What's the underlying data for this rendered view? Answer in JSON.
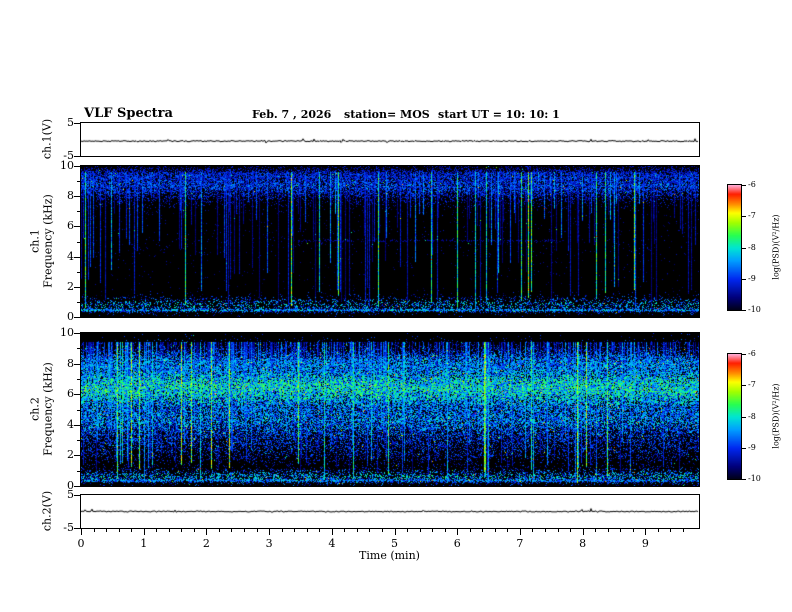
{
  "header": {
    "title": "VLF Spectra",
    "date": "Feb. 7 , 2026",
    "station": "station= MOS",
    "start_ut": "start UT =  10: 10: 1"
  },
  "axes": {
    "time": {
      "label": "Time (min)",
      "lim": [
        0,
        9.84
      ],
      "ticks": [
        0,
        1,
        2,
        3,
        4,
        5,
        6,
        7,
        8,
        9
      ],
      "minor_step": 0.2
    },
    "freq": {
      "label": "Frequency (kHz)",
      "lim": [
        0,
        10
      ],
      "ticks": [
        0,
        2,
        4,
        6,
        8,
        10
      ],
      "minor": [
        1,
        3,
        5,
        7,
        9
      ]
    },
    "amp": {
      "lim": [
        -5,
        5
      ],
      "ticks": [
        5,
        -5
      ]
    }
  },
  "panels": {
    "amp1": {
      "ylabel": "ch.1(V)"
    },
    "spec1": {
      "channel": "ch.1",
      "ylabel": "Frequency (kHz)"
    },
    "spec2": {
      "channel": "ch.2",
      "ylabel": "Frequency (kHz)"
    },
    "amp2": {
      "ylabel": "ch.2(V)"
    }
  },
  "colorbar": {
    "label": "log(PSD)(V²/Hz)",
    "ticks": [
      -6,
      -7,
      -8,
      -9,
      -10
    ],
    "zlim": [
      -10,
      -6
    ],
    "stops": [
      [
        0.0,
        "#000014"
      ],
      [
        0.1,
        "#000078"
      ],
      [
        0.25,
        "#0028f0"
      ],
      [
        0.4,
        "#00a0ff"
      ],
      [
        0.5,
        "#00e6d2"
      ],
      [
        0.6,
        "#28ff50"
      ],
      [
        0.7,
        "#a0ff00"
      ],
      [
        0.78,
        "#ffff00"
      ],
      [
        0.85,
        "#ff8c00"
      ],
      [
        0.93,
        "#ff1e00"
      ],
      [
        1.0,
        "#ffaad2"
      ]
    ]
  },
  "chart_data": [
    {
      "type": "line",
      "name": "ch1_voltage",
      "ylabel": "ch.1(V)",
      "ylim": [
        -5,
        5
      ],
      "y_ticks": [
        5,
        -5
      ],
      "xlim": [
        0,
        9.84
      ],
      "summary": "Near-constant ch.1 voltage trace at about 0 V with sub-volt noise for the full 9.84 min record",
      "render": {
        "seed": 11,
        "level": 0.55,
        "noise": 1.2,
        "spike_p": 0.02,
        "spike": 2.5
      }
    },
    {
      "type": "heatmap",
      "name": "ch1_spectrogram",
      "xlabel": "Time (min)",
      "ylabel": "Frequency (kHz)",
      "xlim": [
        0,
        9.84
      ],
      "ylim": [
        0,
        10
      ],
      "zlabel": "log(PSD)(V²/Hz)",
      "zlim": [
        -10,
        -6
      ],
      "summary": "Mostly low PSD (black). Dense blue-cyan impulsive band 7.5-9.7 kHz, sferic-like vertical streaks spanning 0-10 kHz, narrow activity band near 0.4-1.2 kHz, faint line near 5 kHz mid-record.",
      "render": {
        "seed": 1337,
        "fmax": 10,
        "streak_density": 0.3,
        "bright_density": 0.022,
        "streak_top": 9.6,
        "streak_min": 0.3,
        "hot": 0.005,
        "bands": [
          {
            "center": 8.7,
            "width": 0.9,
            "fill": 0.75,
            "base": 0.1,
            "var": 0.3
          },
          {
            "center": 9.4,
            "width": 0.4,
            "fill": 0.55,
            "base": 0.1,
            "var": 0.25
          },
          {
            "center": 5.05,
            "width": 0.07,
            "fill": 0.45,
            "base": 0.08,
            "var": 0.1,
            "xspan": [
              0.35,
              0.78
            ]
          },
          {
            "center": 5.0,
            "width": 3.4,
            "fill": 0.02,
            "base": 0.06,
            "var": 0.12
          },
          {
            "center": 0.8,
            "width": 0.45,
            "fill": 0.38,
            "base": 0.12,
            "var": 0.45
          },
          {
            "center": 0.45,
            "width": 0.1,
            "fill": 0.85,
            "base": 0.22,
            "var": 0.35
          }
        ]
      }
    },
    {
      "type": "heatmap",
      "name": "ch2_spectrogram",
      "xlabel": "Time (min)",
      "ylabel": "Frequency (kHz)",
      "xlim": [
        0,
        9.84
      ],
      "ylim": [
        0,
        10
      ],
      "zlabel": "log(PSD)(V²/Hz)",
      "zlim": [
        -10,
        -6
      ],
      "summary": "Strong broadband activity: dense green-cyan band 3-8.5 kHz with yellow/red speckle, many vertical streaks reaching below 1 kHz, narrow band near 0.3-1 kHz, mostly dark above 9 kHz.",
      "render": {
        "seed": 4242,
        "fmax": 10,
        "streak_density": 0.5,
        "bright_density": 0.05,
        "streak_top": 9.4,
        "streak_min": 0.15,
        "hot": 0.012,
        "bands": [
          {
            "center": 6.4,
            "width": 1.5,
            "fill": 0.92,
            "base": 0.26,
            "var": 0.42
          },
          {
            "center": 8.0,
            "width": 0.9,
            "fill": 0.7,
            "base": 0.18,
            "var": 0.35
          },
          {
            "center": 4.3,
            "width": 1.3,
            "fill": 0.65,
            "base": 0.16,
            "var": 0.38
          },
          {
            "center": 2.6,
            "width": 1.2,
            "fill": 0.3,
            "base": 0.1,
            "var": 0.28
          },
          {
            "center": 0.6,
            "width": 0.4,
            "fill": 0.5,
            "base": 0.15,
            "var": 0.45
          },
          {
            "center": 0.35,
            "width": 0.1,
            "fill": 0.8,
            "base": 0.2,
            "var": 0.3
          }
        ]
      }
    },
    {
      "type": "line",
      "name": "ch2_voltage",
      "ylabel": "ch.2(V)",
      "ylim": [
        -5,
        5
      ],
      "y_ticks": [
        5,
        -5
      ],
      "xlim": [
        0,
        9.84
      ],
      "summary": "Near-constant ch.2 voltage trace at about 0 V with sub-volt noise for the full 9.84 min record",
      "render": {
        "seed": 22,
        "level": 0.5,
        "noise": 1.2,
        "spike_p": 0.02,
        "spike": 2.5
      }
    }
  ]
}
